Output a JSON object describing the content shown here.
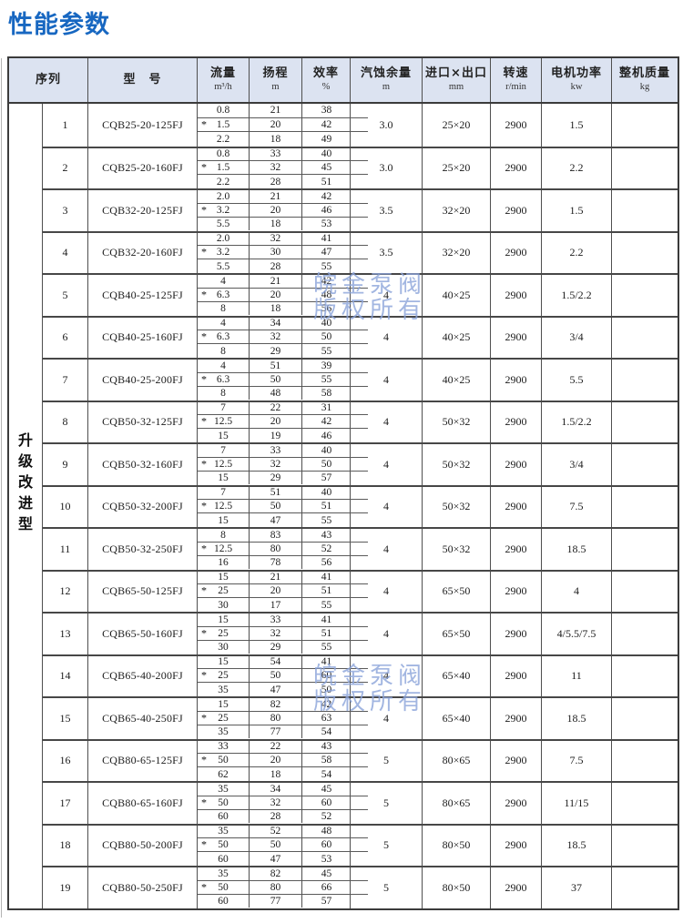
{
  "page": {
    "title": "性能参数"
  },
  "colors": {
    "title-color": "#1767C1",
    "header-bg": "#DCE3F1",
    "watermark": "#8CA4DA"
  },
  "side_label": "升级改进型",
  "watermark": {
    "line1": "皖金泵阀",
    "line2": "版权所有"
  },
  "table": {
    "flow_marker": "*",
    "header": {
      "seq": "序列",
      "model": "型　号",
      "flow": {
        "label": "流量",
        "unit": "m³/h"
      },
      "head": {
        "label": "扬程",
        "unit": "m"
      },
      "eff": {
        "label": "效率",
        "unit": "%"
      },
      "npsh": {
        "label": "汽蚀余量",
        "unit": "m"
      },
      "inlet_outlet": {
        "label": "进口×出口",
        "unit": "mm"
      },
      "speed": {
        "label": "转速",
        "unit": "r/min"
      },
      "power": {
        "label": "电机功率",
        "unit": "kw"
      },
      "weight": {
        "label": "整机质量",
        "unit": "kg"
      }
    },
    "rows": [
      {
        "seq": "1",
        "model": "CQB25-20-125FJ",
        "flows": [
          "0.8",
          "1.5",
          "2.2"
        ],
        "heads": [
          "21",
          "20",
          "18"
        ],
        "effs": [
          "38",
          "42",
          "49"
        ],
        "npsh": "3.0",
        "inlet_outlet": "25×20",
        "speed": "2900",
        "power": "1.5",
        "weight": ""
      },
      {
        "seq": "2",
        "model": "CQB25-20-160FJ",
        "flows": [
          "0.8",
          "1.5",
          "2.2"
        ],
        "heads": [
          "33",
          "32",
          "28"
        ],
        "effs": [
          "40",
          "45",
          "51"
        ],
        "npsh": "3.0",
        "inlet_outlet": "25×20",
        "speed": "2900",
        "power": "2.2",
        "weight": ""
      },
      {
        "seq": "3",
        "model": "CQB32-20-125FJ",
        "flows": [
          "2.0",
          "3.2",
          "5.5"
        ],
        "heads": [
          "21",
          "20",
          "18"
        ],
        "effs": [
          "42",
          "46",
          "53"
        ],
        "npsh": "3.5",
        "inlet_outlet": "32×20",
        "speed": "2900",
        "power": "1.5",
        "weight": ""
      },
      {
        "seq": "4",
        "model": "CQB32-20-160FJ",
        "flows": [
          "2.0",
          "3.2",
          "5.5"
        ],
        "heads": [
          "32",
          "30",
          "28"
        ],
        "effs": [
          "41",
          "47",
          "55"
        ],
        "npsh": "3.5",
        "inlet_outlet": "32×20",
        "speed": "2900",
        "power": "2.2",
        "weight": ""
      },
      {
        "seq": "5",
        "model": "CQB40-25-125FJ",
        "flows": [
          "4",
          "6.3",
          "8"
        ],
        "heads": [
          "21",
          "20",
          "18"
        ],
        "effs": [
          "42",
          "48",
          "56"
        ],
        "npsh": "4",
        "inlet_outlet": "40×25",
        "speed": "2900",
        "power": "1.5/2.2",
        "weight": ""
      },
      {
        "seq": "6",
        "model": "CQB40-25-160FJ",
        "flows": [
          "4",
          "6.3",
          "8"
        ],
        "heads": [
          "34",
          "32",
          "29"
        ],
        "effs": [
          "40",
          "50",
          "55"
        ],
        "npsh": "4",
        "inlet_outlet": "40×25",
        "speed": "2900",
        "power": "3/4",
        "weight": ""
      },
      {
        "seq": "7",
        "model": "CQB40-25-200FJ",
        "flows": [
          "4",
          "6.3",
          "8"
        ],
        "heads": [
          "51",
          "50",
          "48"
        ],
        "effs": [
          "39",
          "55",
          "58"
        ],
        "npsh": "4",
        "inlet_outlet": "40×25",
        "speed": "2900",
        "power": "5.5",
        "weight": ""
      },
      {
        "seq": "8",
        "model": "CQB50-32-125FJ",
        "flows": [
          "7",
          "12.5",
          "15"
        ],
        "heads": [
          "22",
          "20",
          "19"
        ],
        "effs": [
          "31",
          "42",
          "46"
        ],
        "npsh": "4",
        "inlet_outlet": "50×32",
        "speed": "2900",
        "power": "1.5/2.2",
        "weight": ""
      },
      {
        "seq": "9",
        "model": "CQB50-32-160FJ",
        "flows": [
          "7",
          "12.5",
          "15"
        ],
        "heads": [
          "33",
          "32",
          "29"
        ],
        "effs": [
          "40",
          "50",
          "57"
        ],
        "npsh": "4",
        "inlet_outlet": "50×32",
        "speed": "2900",
        "power": "3/4",
        "weight": ""
      },
      {
        "seq": "10",
        "model": "CQB50-32-200FJ",
        "flows": [
          "7",
          "12.5",
          "15"
        ],
        "heads": [
          "51",
          "50",
          "47"
        ],
        "effs": [
          "40",
          "51",
          "55"
        ],
        "npsh": "4",
        "inlet_outlet": "50×32",
        "speed": "2900",
        "power": "7.5",
        "weight": ""
      },
      {
        "seq": "11",
        "model": "CQB50-32-250FJ",
        "flows": [
          "8",
          "12.5",
          "16"
        ],
        "heads": [
          "83",
          "80",
          "78"
        ],
        "effs": [
          "43",
          "52",
          "56"
        ],
        "npsh": "4",
        "inlet_outlet": "50×32",
        "speed": "2900",
        "power": "18.5",
        "weight": ""
      },
      {
        "seq": "12",
        "model": "CQB65-50-125FJ",
        "flows": [
          "15",
          "25",
          "30"
        ],
        "heads": [
          "21",
          "20",
          "17"
        ],
        "effs": [
          "41",
          "51",
          "55"
        ],
        "npsh": "4",
        "inlet_outlet": "65×50",
        "speed": "2900",
        "power": "4",
        "weight": ""
      },
      {
        "seq": "13",
        "model": "CQB65-50-160FJ",
        "flows": [
          "15",
          "25",
          "30"
        ],
        "heads": [
          "33",
          "32",
          "29"
        ],
        "effs": [
          "41",
          "51",
          "55"
        ],
        "npsh": "4",
        "inlet_outlet": "65×50",
        "speed": "2900",
        "power": "4/5.5/7.5",
        "weight": ""
      },
      {
        "seq": "14",
        "model": "CQB65-40-200FJ",
        "flows": [
          "15",
          "25",
          "35"
        ],
        "heads": [
          "54",
          "50",
          "47"
        ],
        "effs": [
          "41",
          "60",
          "50"
        ],
        "npsh": "4",
        "inlet_outlet": "65×40",
        "speed": "2900",
        "power": "11",
        "weight": ""
      },
      {
        "seq": "15",
        "model": "CQB65-40-250FJ",
        "flows": [
          "15",
          "25",
          "35"
        ],
        "heads": [
          "82",
          "80",
          "77"
        ],
        "effs": [
          "42",
          "63",
          "54"
        ],
        "npsh": "4",
        "inlet_outlet": "65×40",
        "speed": "2900",
        "power": "18.5",
        "weight": ""
      },
      {
        "seq": "16",
        "model": "CQB80-65-125FJ",
        "flows": [
          "33",
          "50",
          "62"
        ],
        "heads": [
          "22",
          "20",
          "18"
        ],
        "effs": [
          "43",
          "58",
          "54"
        ],
        "npsh": "5",
        "inlet_outlet": "80×65",
        "speed": "2900",
        "power": "7.5",
        "weight": ""
      },
      {
        "seq": "17",
        "model": "CQB80-65-160FJ",
        "flows": [
          "35",
          "50",
          "60"
        ],
        "heads": [
          "34",
          "32",
          "28"
        ],
        "effs": [
          "45",
          "60",
          "52"
        ],
        "npsh": "5",
        "inlet_outlet": "80×65",
        "speed": "2900",
        "power": "11/15",
        "weight": ""
      },
      {
        "seq": "18",
        "model": "CQB80-50-200FJ",
        "flows": [
          "35",
          "50",
          "60"
        ],
        "heads": [
          "52",
          "50",
          "47"
        ],
        "effs": [
          "48",
          "60",
          "53"
        ],
        "npsh": "5",
        "inlet_outlet": "80×50",
        "speed": "2900",
        "power": "18.5",
        "weight": ""
      },
      {
        "seq": "19",
        "model": "CQB80-50-250FJ",
        "flows": [
          "35",
          "50",
          "60"
        ],
        "heads": [
          "82",
          "80",
          "77"
        ],
        "effs": [
          "45",
          "66",
          "57"
        ],
        "npsh": "5",
        "inlet_outlet": "80×50",
        "speed": "2900",
        "power": "37",
        "weight": ""
      }
    ]
  }
}
